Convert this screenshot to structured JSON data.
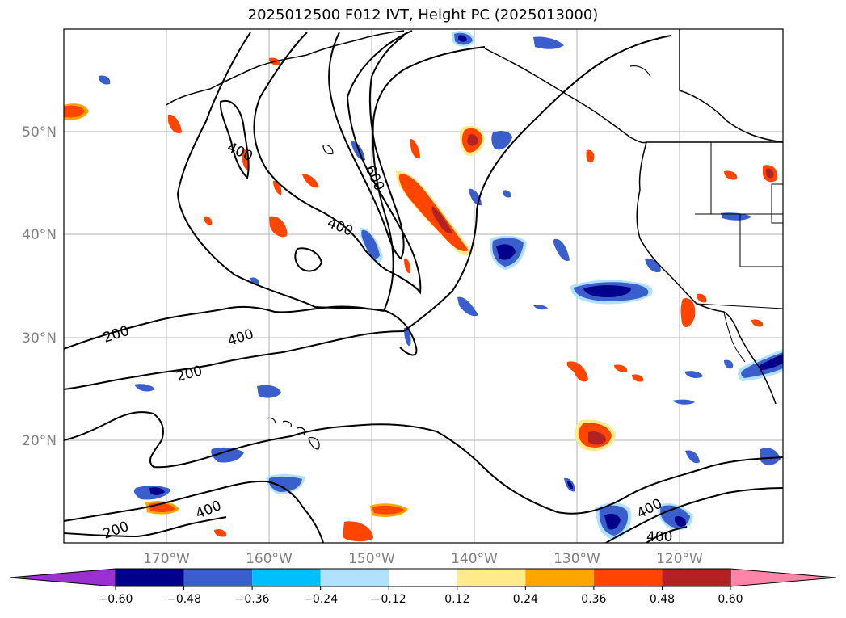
{
  "title": "2025012500 F012 IVT, Height PC (2025013000)",
  "map": {
    "lat_labels": [
      "50°N",
      "40°N",
      "30°N",
      "20°N"
    ],
    "lon_labels": [
      "170°W",
      "160°W",
      "150°W",
      "140°W",
      "130°W",
      "120°W"
    ],
    "contour_labels": [
      "400",
      "600",
      "400",
      "200",
      "400",
      "200",
      "400",
      "200",
      "400",
      "400"
    ],
    "grid_color": "#b0b0b0"
  },
  "colorbar": {
    "ticks": [
      "−0.60",
      "−0.48",
      "−0.36",
      "−0.24",
      "−0.12",
      "0.12",
      "0.24",
      "0.36",
      "0.48",
      "0.60"
    ],
    "colors": [
      "#9b30d0",
      "#00008b",
      "#3a5fcd",
      "#00bfff",
      "#b0e2ff",
      "#ffffff",
      "#ffeb8a",
      "#ffa500",
      "#ff4500",
      "#b22222",
      "#ff85a8"
    ]
  }
}
